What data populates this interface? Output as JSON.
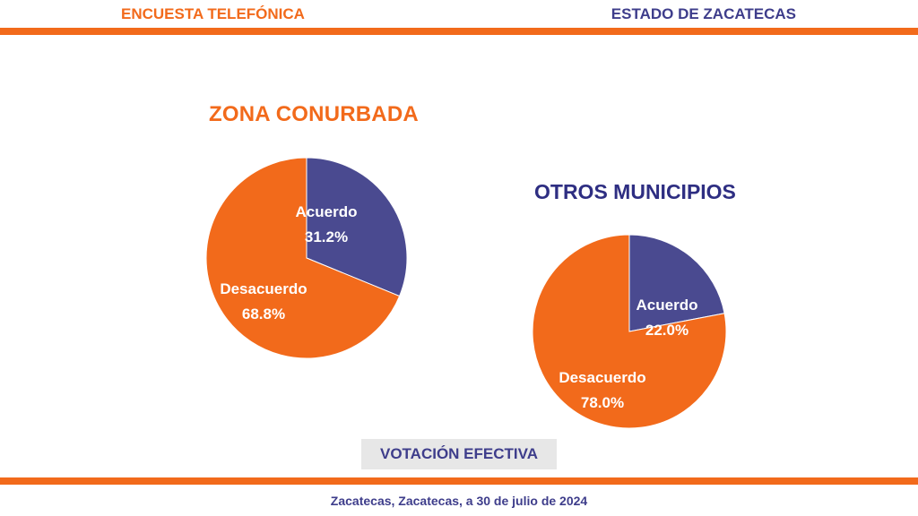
{
  "header": {
    "left_title": "ENCUESTA TELEFÓNICA",
    "right_title": "ESTADO DE ZACATECAS"
  },
  "footer": {
    "text": "Zacatecas, Zacatecas, a 30 de julio de 2024"
  },
  "badge": {
    "text": "VOTACIÓN EFECTIVA"
  },
  "colors": {
    "orange": "#f26a1b",
    "indigo": "#4a4a90",
    "title_indigo": "#2e2e82"
  },
  "chart_data": [
    {
      "type": "pie",
      "title": "ZONA CONURBADA",
      "slices": [
        {
          "label": "Acuerdo",
          "value": 31.2,
          "display": "31.2%",
          "color": "#4a4a90"
        },
        {
          "label": "Desacuerdo",
          "value": 68.8,
          "display": "68.8%",
          "color": "#f26a1b"
        }
      ]
    },
    {
      "type": "pie",
      "title": "OTROS MUNICIPIOS",
      "slices": [
        {
          "label": "Acuerdo",
          "value": 22.0,
          "display": "22.0%",
          "color": "#4a4a90"
        },
        {
          "label": "Desacuerdo",
          "value": 78.0,
          "display": "78.0%",
          "color": "#f26a1b"
        }
      ]
    }
  ]
}
